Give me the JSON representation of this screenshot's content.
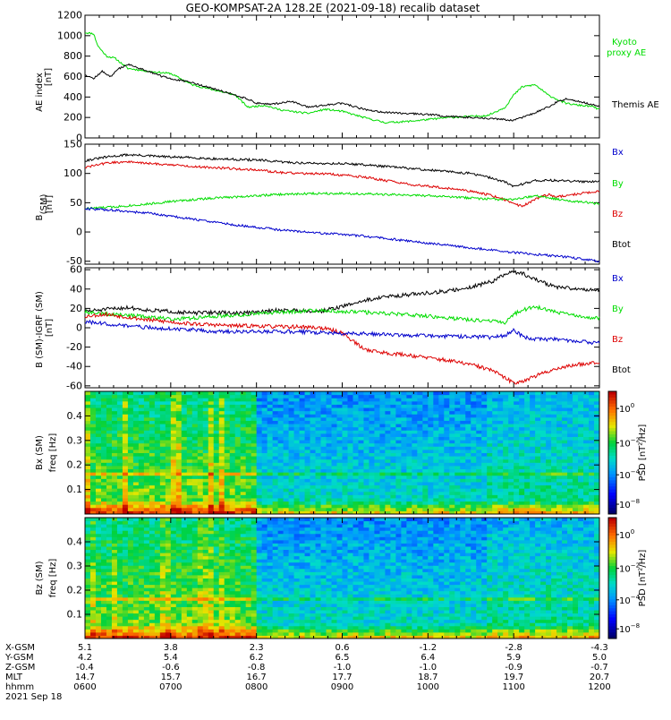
{
  "title": "GEO-KOMPSAT-2A 128.2E (2021-09-18) recalib dataset",
  "colors": {
    "black": "#000000",
    "green": "#00dd00",
    "red": "#dd0000",
    "blue": "#0000cc"
  },
  "chart_data": [
    {
      "id": "ae",
      "type": "line",
      "ylabel": "AE index [nT]",
      "ylim": [
        0,
        1200
      ],
      "yticks": [
        0,
        200,
        400,
        600,
        800,
        1000,
        1200
      ],
      "legend": [
        "Kyoto proxy AE",
        "Themis AE"
      ],
      "series": [
        {
          "name": "Kyoto proxy AE",
          "color": "#00dd00",
          "x": [
            6.0,
            6.1,
            6.15,
            6.25,
            6.35,
            6.5,
            6.75,
            7.0,
            7.25,
            7.5,
            7.75,
            7.9,
            8.1,
            8.25,
            8.4,
            8.6,
            8.8,
            9.0,
            9.25,
            9.5,
            9.75,
            10.0,
            10.25,
            10.5,
            10.7,
            10.9,
            11.0,
            11.1,
            11.25,
            11.4,
            11.5,
            11.6,
            11.75,
            11.9,
            12.0
          ],
          "y": [
            1030,
            1020,
            900,
            800,
            780,
            680,
            650,
            630,
            520,
            470,
            420,
            300,
            320,
            280,
            260,
            240,
            280,
            260,
            200,
            150,
            160,
            180,
            200,
            210,
            220,
            300,
            420,
            500,
            520,
            420,
            380,
            340,
            320,
            310,
            280
          ]
        },
        {
          "name": "Themis AE",
          "color": "#000000",
          "x": [
            6.0,
            6.1,
            6.2,
            6.3,
            6.4,
            6.5,
            6.6,
            6.75,
            6.9,
            7.0,
            7.25,
            7.5,
            7.75,
            7.9,
            8.0,
            8.2,
            8.4,
            8.6,
            8.8,
            9.0,
            9.25,
            9.5,
            9.75,
            10.0,
            10.25,
            10.5,
            10.75,
            11.0,
            11.2,
            11.4,
            11.5,
            11.6,
            11.75,
            11.9,
            12.0
          ],
          "y": [
            620,
            580,
            650,
            600,
            680,
            720,
            690,
            650,
            600,
            580,
            540,
            480,
            420,
            380,
            340,
            330,
            360,
            300,
            320,
            340,
            280,
            250,
            240,
            230,
            210,
            200,
            190,
            170,
            230,
            300,
            350,
            380,
            360,
            330,
            310
          ]
        }
      ]
    },
    {
      "id": "bgsm",
      "type": "line",
      "ylabel": "B [nT] (SM)",
      "ylim": [
        -55,
        150
      ],
      "yticks": [
        -50,
        0,
        50,
        100,
        150
      ],
      "legend": [
        "Bx",
        "By",
        "Bz",
        "Btot"
      ],
      "series": [
        {
          "name": "Btot",
          "color": "#000000",
          "x": [
            6.0,
            6.25,
            6.5,
            6.75,
            7.0,
            7.25,
            7.5,
            7.75,
            8.0,
            8.25,
            8.5,
            8.75,
            9.0,
            9.25,
            9.5,
            9.75,
            10.0,
            10.25,
            10.5,
            10.75,
            10.9,
            11.0,
            11.1,
            11.25,
            11.5,
            11.75,
            12.0
          ],
          "y": [
            122,
            128,
            132,
            130,
            128,
            127,
            125,
            124,
            123,
            120,
            118,
            117,
            117,
            115,
            112,
            109,
            106,
            103,
            100,
            92,
            85,
            78,
            82,
            88,
            88,
            86,
            87
          ]
        },
        {
          "name": "Bz",
          "color": "#dd0000",
          "x": [
            6.0,
            6.25,
            6.5,
            6.75,
            7.0,
            7.25,
            7.5,
            7.75,
            8.0,
            8.25,
            8.5,
            8.75,
            9.0,
            9.25,
            9.5,
            9.75,
            10.0,
            10.25,
            10.5,
            10.75,
            10.9,
            11.0,
            11.1,
            11.25,
            11.4,
            11.5,
            11.75,
            12.0
          ],
          "y": [
            110,
            118,
            120,
            117,
            115,
            112,
            110,
            108,
            106,
            102,
            100,
            100,
            97,
            94,
            88,
            82,
            78,
            74,
            70,
            62,
            55,
            48,
            44,
            56,
            64,
            60,
            65,
            70
          ]
        },
        {
          "name": "By",
          "color": "#00dd00",
          "x": [
            6.0,
            6.25,
            6.5,
            6.75,
            7.0,
            7.25,
            7.5,
            7.75,
            8.0,
            8.25,
            8.5,
            8.75,
            9.0,
            9.25,
            9.5,
            9.75,
            10.0,
            10.25,
            10.5,
            10.75,
            11.0,
            11.25,
            11.5,
            11.75,
            12.0
          ],
          "y": [
            40,
            42,
            45,
            48,
            52,
            55,
            58,
            60,
            62,
            64,
            65,
            66,
            66,
            65,
            64,
            63,
            62,
            60,
            58,
            56,
            55,
            62,
            56,
            52,
            48
          ]
        },
        {
          "name": "Bx",
          "color": "#0000cc",
          "x": [
            6.0,
            6.25,
            6.5,
            6.75,
            7.0,
            7.25,
            7.5,
            7.75,
            8.0,
            8.25,
            8.5,
            8.75,
            9.0,
            9.25,
            9.5,
            9.75,
            10.0,
            10.25,
            10.5,
            10.75,
            11.0,
            11.25,
            11.5,
            11.75,
            12.0
          ],
          "y": [
            40,
            38,
            35,
            32,
            27,
            22,
            17,
            12,
            8,
            4,
            1,
            -2,
            -4,
            -7,
            -11,
            -15,
            -19,
            -23,
            -27,
            -31,
            -35,
            -38,
            -41,
            -45,
            -50
          ]
        }
      ]
    },
    {
      "id": "bigrf",
      "type": "line",
      "ylabel": "B (SM)-IGRF (SM) [nT]",
      "ylim": [
        -62,
        62
      ],
      "yticks": [
        -60,
        -40,
        -20,
        0,
        20,
        40,
        60
      ],
      "legend": [
        "Bx",
        "By",
        "Bz",
        "Btot"
      ],
      "series": [
        {
          "name": "Btot",
          "color": "#000000",
          "x": [
            6.0,
            6.25,
            6.5,
            6.75,
            7.0,
            7.25,
            7.5,
            7.75,
            8.0,
            8.25,
            8.5,
            8.75,
            9.0,
            9.25,
            9.5,
            9.75,
            10.0,
            10.25,
            10.5,
            10.75,
            10.9,
            11.0,
            11.1,
            11.25,
            11.4,
            11.5,
            11.75,
            12.0
          ],
          "y": [
            17,
            19,
            21,
            18,
            17,
            15,
            16,
            15,
            16,
            18,
            18,
            17,
            22,
            28,
            32,
            34,
            36,
            38,
            42,
            48,
            55,
            58,
            56,
            50,
            45,
            42,
            40,
            39
          ]
        },
        {
          "name": "By",
          "color": "#00dd00",
          "x": [
            6.0,
            6.25,
            6.5,
            6.75,
            7.0,
            7.25,
            7.5,
            7.75,
            8.0,
            8.25,
            8.5,
            8.75,
            9.0,
            9.25,
            9.5,
            9.75,
            10.0,
            10.25,
            10.5,
            10.75,
            10.9,
            11.0,
            11.1,
            11.25,
            11.5,
            11.75,
            12.0
          ],
          "y": [
            16,
            14,
            13,
            11,
            9,
            10,
            12,
            13,
            15,
            16,
            17,
            18,
            17,
            16,
            15,
            14,
            12,
            10,
            8,
            7,
            5,
            14,
            18,
            22,
            16,
            12,
            10
          ]
        },
        {
          "name": "Bz",
          "color": "#dd0000",
          "x": [
            6.0,
            6.25,
            6.5,
            6.75,
            7.0,
            7.25,
            7.5,
            7.75,
            8.0,
            8.25,
            8.5,
            8.75,
            9.0,
            9.1,
            9.25,
            9.5,
            9.75,
            10.0,
            10.25,
            10.5,
            10.75,
            10.9,
            11.0,
            11.1,
            11.25,
            11.5,
            11.75,
            12.0
          ],
          "y": [
            12,
            14,
            11,
            8,
            6,
            4,
            3,
            2,
            2,
            1,
            1,
            0,
            -5,
            -12,
            -22,
            -26,
            -28,
            -31,
            -34,
            -38,
            -44,
            -52,
            -57,
            -55,
            -50,
            -42,
            -38,
            -35
          ]
        },
        {
          "name": "Bx",
          "color": "#0000cc",
          "x": [
            6.0,
            6.25,
            6.5,
            6.75,
            7.0,
            7.25,
            7.5,
            7.75,
            8.0,
            8.25,
            8.5,
            8.75,
            9.0,
            9.25,
            9.5,
            9.75,
            10.0,
            10.25,
            10.5,
            10.75,
            10.9,
            11.0,
            11.1,
            11.25,
            11.5,
            11.75,
            12.0
          ],
          "y": [
            6,
            4,
            2,
            0,
            -1,
            -2,
            -4,
            -4,
            -4,
            -4,
            -4,
            -5,
            -6,
            -6,
            -7,
            -8,
            -8,
            -9,
            -9,
            -10,
            -8,
            -2,
            -9,
            -12,
            -12,
            -14,
            -16
          ]
        }
      ]
    },
    {
      "id": "bx-spec",
      "type": "heatmap",
      "ylabel": "Bx (SM) freq [Hz]",
      "ylim": [
        0,
        0.5
      ],
      "yticks": [
        0.1,
        0.2,
        0.3,
        0.4
      ],
      "colorbar_label": "PSD [nT²/Hz]"
    },
    {
      "id": "bz-spec",
      "type": "heatmap",
      "ylabel": "Bz (SM) freq [Hz]",
      "ylim": [
        0,
        0.5
      ],
      "yticks": [
        0.1,
        0.2,
        0.3,
        0.4
      ],
      "colorbar_label": "PSD [nT²/Hz]"
    }
  ],
  "xaxis": {
    "row_labels": [
      "X-GSM",
      "Y-GSM",
      "Z-GSM",
      "MLT",
      "hhmm"
    ],
    "columns": [
      {
        "t": 6,
        "values": [
          "5.1",
          "4.2",
          "-0.4",
          "14.7",
          "0600"
        ]
      },
      {
        "t": 7,
        "values": [
          "3.8",
          "5.4",
          "-0.6",
          "15.7",
          "0700"
        ]
      },
      {
        "t": 8,
        "values": [
          "2.3",
          "6.2",
          "-0.8",
          "16.7",
          "0800"
        ]
      },
      {
        "t": 9,
        "values": [
          "0.6",
          "6.5",
          "-1.0",
          "17.7",
          "0900"
        ]
      },
      {
        "t": 10,
        "values": [
          "-1.2",
          "6.4",
          "-1.0",
          "18.7",
          "1000"
        ]
      },
      {
        "t": 11,
        "values": [
          "-2.8",
          "5.9",
          "-0.9",
          "19.7",
          "1100"
        ]
      },
      {
        "t": 12,
        "values": [
          "-4.3",
          "5.0",
          "-0.7",
          "20.7",
          "1200"
        ]
      }
    ],
    "date": "2021 Sep 18"
  }
}
